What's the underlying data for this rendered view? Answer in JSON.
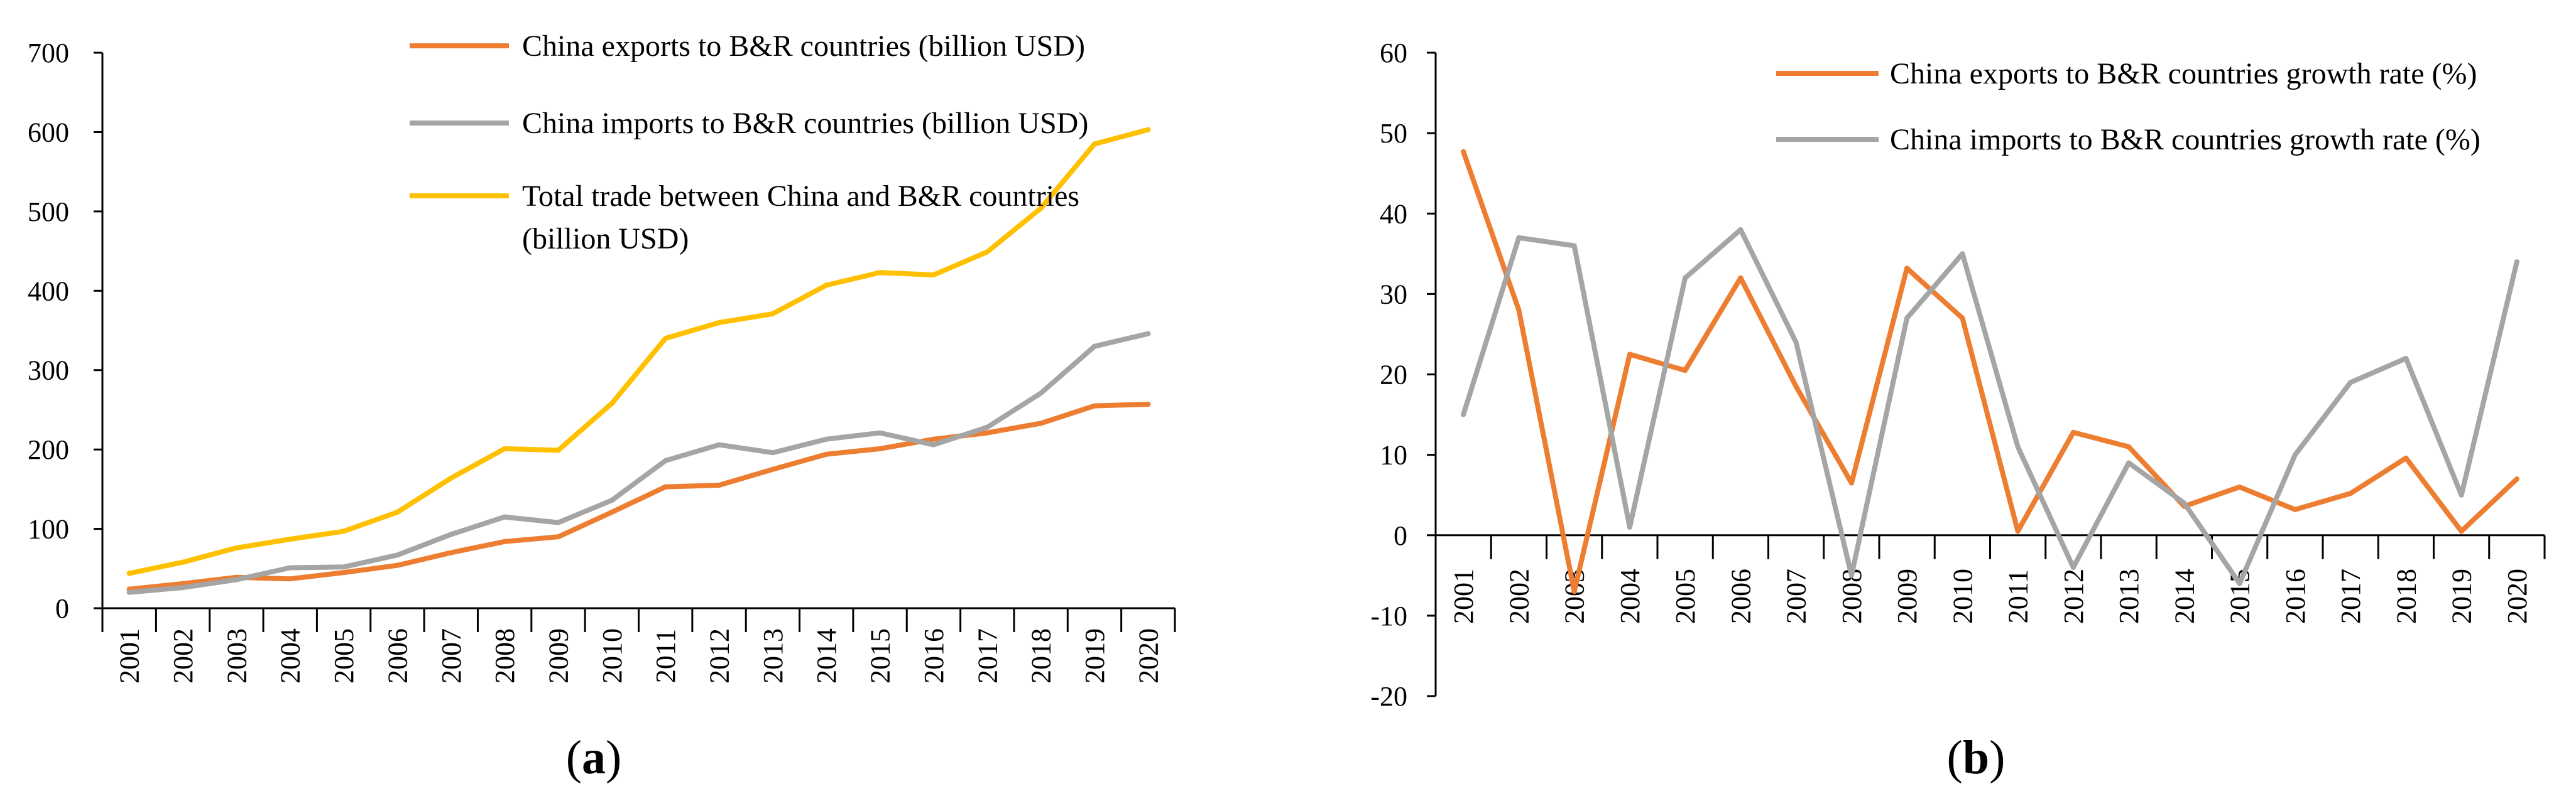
{
  "colors": {
    "exports": "#ED7D31",
    "imports": "#A5A5A5",
    "total": "#FFC000",
    "axis": "#000000"
  },
  "chart_data": [
    {
      "type": "line",
      "panel_label": "a",
      "categories": [
        "2001",
        "2002",
        "2003",
        "2004",
        "2005",
        "2006",
        "2007",
        "2008",
        "2009",
        "2010",
        "2011",
        "2012",
        "2013",
        "2014",
        "2015",
        "2016",
        "2017",
        "2018",
        "2019",
        "2020"
      ],
      "ylim": [
        0,
        700
      ],
      "yticks": [
        0,
        100,
        200,
        300,
        400,
        500,
        600,
        700
      ],
      "series": [
        {
          "name": "China exports to B&R countries (billion USD)",
          "color_key": "exports",
          "values": [
            24,
            31,
            39,
            37,
            45,
            54,
            70,
            84,
            90,
            121,
            153,
            155,
            175,
            194,
            201,
            213,
            221,
            233,
            255,
            257
          ]
        },
        {
          "name": "China imports to B&R countries (billion USD)",
          "color_key": "imports",
          "values": [
            20,
            26,
            36,
            51,
            52,
            67,
            93,
            115,
            108,
            136,
            186,
            206,
            196,
            213,
            221,
            206,
            228,
            271,
            330,
            346
          ]
        },
        {
          "name": "Total trade between China and B&R countries (billion USD)",
          "color_key": "total",
          "legend_lines": [
            "Total trade between China and B&R countries",
            "(billion USD)"
          ],
          "values": [
            44,
            58,
            76,
            87,
            97,
            121,
            164,
            201,
            199,
            258,
            340,
            360,
            371,
            407,
            423,
            420,
            449,
            504,
            585,
            603
          ]
        }
      ]
    },
    {
      "type": "line",
      "panel_label": "b",
      "categories": [
        "2001",
        "2002",
        "2003",
        "2004",
        "2005",
        "2006",
        "2007",
        "2008",
        "2009",
        "2010",
        "2011",
        "2012",
        "2013",
        "2014",
        "2015",
        "2016",
        "2017",
        "2018",
        "2019",
        "2020"
      ],
      "ylim": [
        -20,
        60
      ],
      "yticks": [
        -20,
        -10,
        0,
        10,
        20,
        30,
        40,
        50,
        60
      ],
      "series": [
        {
          "name": "China exports to B&R countries growth rate (%)",
          "color_key": "exports",
          "values": [
            47.7,
            28,
            -7,
            22.5,
            20.5,
            32,
            18.5,
            6.5,
            33.2,
            27,
            0.5,
            12.8,
            11,
            3.6,
            6,
            3.2,
            5.2,
            9.6,
            0.5,
            7
          ]
        },
        {
          "name": "China imports to B&R countries growth rate (%)",
          "color_key": "imports",
          "values": [
            15,
            37,
            36,
            1,
            32,
            38,
            24,
            -5,
            27,
            35,
            11,
            -4,
            9,
            4,
            -6,
            10,
            19,
            22,
            5,
            34
          ]
        }
      ]
    }
  ]
}
